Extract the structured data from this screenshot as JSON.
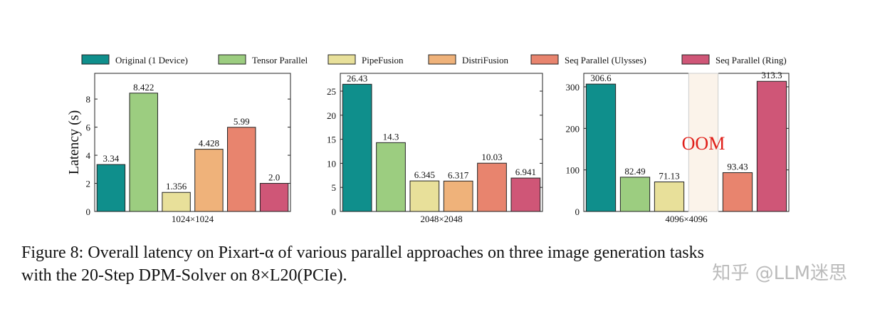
{
  "legend": [
    {
      "name": "Original (1 Device)",
      "color": "#0f8f8c"
    },
    {
      "name": "Tensor Parallel",
      "color": "#9ccd80"
    },
    {
      "name": "PipeFusion",
      "color": "#e8e09a"
    },
    {
      "name": "DistriFusion",
      "color": "#efb27a"
    },
    {
      "name": "Seq Parallel (Ulysses)",
      "color": "#e8846e"
    },
    {
      "name": "Seq Parallel (Ring)",
      "color": "#cf5677"
    }
  ],
  "chart_data": [
    {
      "type": "bar",
      "ylabel": "Latency (s)",
      "xlabel": "1024×1024",
      "values": [
        3.34,
        8.422,
        1.356,
        4.428,
        5.99,
        2.0
      ],
      "value_labels": [
        "3.34",
        "8.422",
        "1.356",
        "4.428",
        "5.99",
        "2.0"
      ],
      "ylim": [
        0,
        9.83
      ],
      "yticks": [
        0,
        2,
        4,
        6,
        8
      ]
    },
    {
      "type": "bar",
      "xlabel": "2048×2048",
      "values": [
        26.43,
        14.3,
        6.345,
        6.317,
        10.03,
        6.941
      ],
      "ylim": [
        0,
        28.7
      ],
      "yticks": [
        0,
        5,
        10,
        15,
        20,
        25
      ]
    },
    {
      "type": "bar",
      "xlabel": "4096×4096",
      "values": [
        306.6,
        82.49,
        71.13,
        null,
        93.43,
        313.3
      ],
      "annotation": "OOM",
      "ylim": [
        0,
        332.5
      ],
      "yticks": [
        0,
        100,
        200,
        300
      ]
    }
  ],
  "caption": [
    "Figure 8: Overall latency on Pixart-α of various parallel approaches on three image generation tasks",
    "with the 20-Step DPM-Solver on 8×L20(PCIe)."
  ],
  "watermark": "知乎 @LLM迷思"
}
